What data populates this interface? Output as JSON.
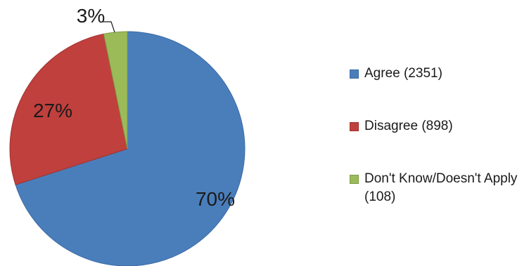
{
  "chart_data": {
    "type": "pie",
    "title": "",
    "start_angle_deg": 0,
    "direction": "clockwise",
    "slices": [
      {
        "name": "Agree (2351)",
        "value": 2351,
        "percent_label": "70%",
        "color": "#4a7ebb",
        "stroke": "#3a6aa5"
      },
      {
        "name": "Disagree (898)",
        "value": 898,
        "percent_label": "27%",
        "color": "#c0403d",
        "stroke": "#a03330"
      },
      {
        "name": "Don't Know/Doesn't Apply (108)",
        "value": 108,
        "percent_label": "3%",
        "color": "#9bbb59",
        "stroke": "#7f9a46"
      }
    ],
    "legend_position": "right"
  }
}
